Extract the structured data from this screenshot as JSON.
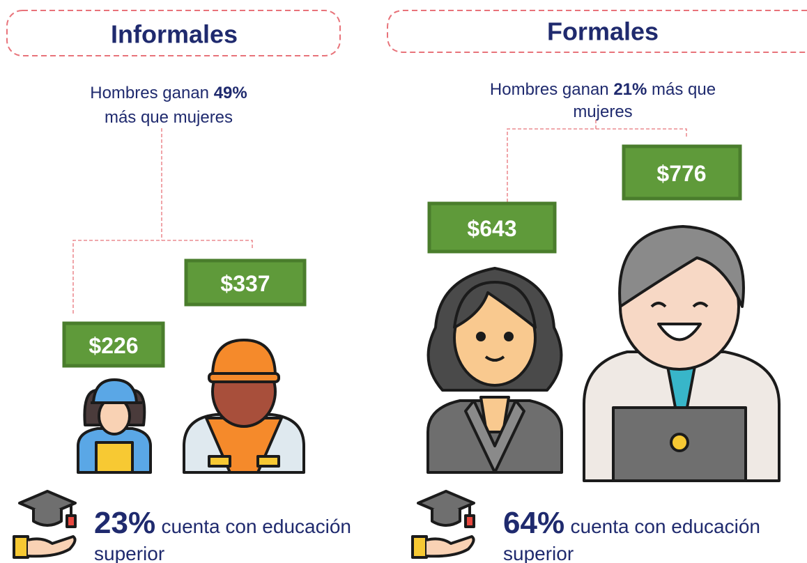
{
  "panels": [
    {
      "title": "Informales",
      "gap": {
        "before": "Hombres ganan",
        "percent": "49%",
        "line_2": "más que mujeres"
      },
      "wages": {
        "women": "$226",
        "men": "$337"
      },
      "education": {
        "percent": "23%",
        "text": "cuenta con educación",
        "text_line_2": "superior"
      }
    },
    {
      "title": "Formales",
      "gap": {
        "before": "Hombres ganan",
        "percent": "21%",
        "after": "más que",
        "line_2": "mujeres"
      },
      "wages": {
        "women": "$643",
        "men": "$776"
      },
      "education": {
        "percent": "64%",
        "text": "cuenta con educación",
        "text_line_2": "superior"
      }
    }
  ]
}
